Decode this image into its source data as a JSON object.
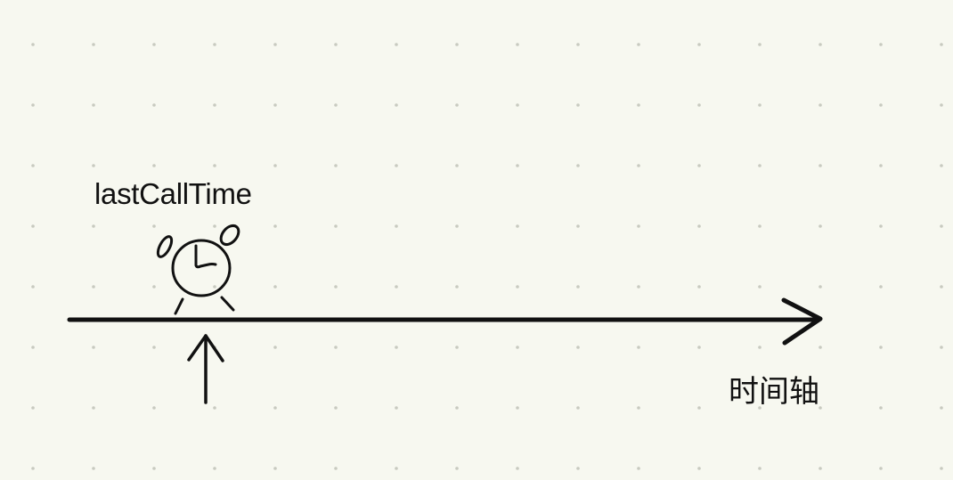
{
  "diagram": {
    "marker_label": "lastCallTime",
    "axis_label": "时间轴",
    "marker_icon": "alarm-clock-icon",
    "pointer_icon": "up-arrow-icon",
    "colors": {
      "background": "#f7f8f0",
      "grid_dot": "#c8cac0",
      "ink": "#111111"
    }
  }
}
